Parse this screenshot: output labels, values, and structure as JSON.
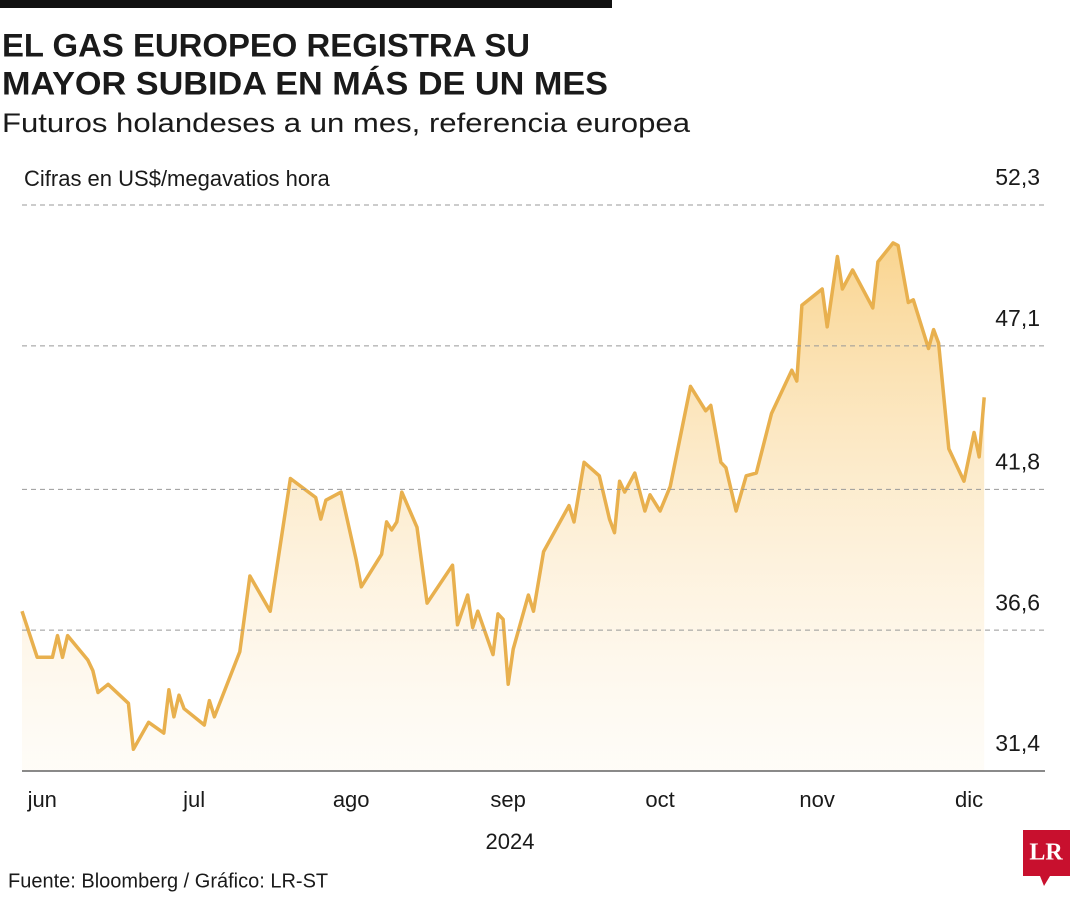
{
  "chart_data": {
    "type": "area",
    "title": [
      "EL GAS EUROPEO REGISTRA SU",
      "MAYOR SUBIDA EN MÁS DE UN MES"
    ],
    "subtitle": "Futuros holandeses a un mes, referencia europea",
    "ylabel": "Cifras en US$/megavatios hora",
    "xlabel": "2024",
    "source": "Fuente: Bloomberg / Gráfico: LR-ST",
    "logo": "LR",
    "color": "#e8b04e",
    "grid": true,
    "xlim": [
      -4,
      198
    ],
    "xticks": [
      {
        "value": 0,
        "label": "jun"
      },
      {
        "value": 30,
        "label": "jul"
      },
      {
        "value": 61,
        "label": "ago"
      },
      {
        "value": 92,
        "label": "sep"
      },
      {
        "value": 122,
        "label": "oct"
      },
      {
        "value": 153,
        "label": "nov"
      },
      {
        "value": 183,
        "label": "dic"
      }
    ],
    "ylim": [
      31.4,
      52.3
    ],
    "yticks": [
      {
        "value": 31.4,
        "label": "31,4"
      },
      {
        "value": 36.6,
        "label": "36,6"
      },
      {
        "value": 41.8,
        "label": "41,8"
      },
      {
        "value": 47.1,
        "label": "47,1"
      },
      {
        "value": 52.3,
        "label": "52,3"
      }
    ],
    "x": [
      -4,
      -1,
      2,
      3,
      4,
      5,
      9,
      10,
      11,
      13,
      17,
      18,
      21,
      24,
      25,
      26,
      27,
      28,
      32,
      33,
      34,
      39,
      41,
      45,
      49,
      54,
      55,
      56,
      59,
      62,
      63,
      67,
      68,
      69,
      70,
      71,
      74,
      76,
      81,
      82,
      84,
      85,
      86,
      89,
      90,
      91,
      92,
      93,
      96,
      97,
      99,
      104,
      105,
      107,
      110,
      112,
      113,
      114,
      115,
      117,
      119,
      120,
      122,
      124,
      128,
      131,
      132,
      134,
      135,
      137,
      139,
      141,
      144,
      148,
      149,
      150,
      154,
      155,
      157,
      158,
      160,
      164,
      165,
      168,
      169,
      171,
      172,
      175,
      176,
      177,
      179,
      182,
      184,
      185,
      186
    ],
    "values": [
      37.3,
      35.6,
      35.6,
      36.4,
      35.6,
      36.4,
      35.5,
      35.1,
      34.3,
      34.6,
      33.9,
      32.2,
      33.2,
      32.8,
      34.4,
      33.4,
      34.2,
      33.7,
      33.1,
      34.0,
      33.4,
      35.8,
      38.6,
      37.3,
      42.2,
      41.5,
      40.7,
      41.4,
      41.7,
      39.2,
      38.2,
      39.4,
      40.6,
      40.3,
      40.6,
      41.7,
      40.4,
      37.6,
      39.0,
      36.8,
      37.9,
      36.7,
      37.3,
      35.7,
      37.2,
      37.0,
      34.6,
      35.9,
      37.9,
      37.3,
      39.5,
      41.2,
      40.6,
      42.8,
      42.3,
      40.7,
      40.2,
      42.1,
      41.7,
      42.4,
      41.0,
      41.6,
      41.0,
      41.9,
      45.6,
      44.7,
      44.9,
      42.8,
      42.6,
      41.0,
      42.3,
      42.4,
      44.6,
      46.2,
      45.8,
      48.6,
      49.2,
      47.8,
      50.4,
      49.2,
      49.9,
      48.5,
      50.2,
      50.9,
      50.8,
      48.7,
      48.8,
      47.0,
      47.7,
      47.2,
      43.3,
      42.1,
      43.9,
      43.0,
      45.2
    ]
  }
}
